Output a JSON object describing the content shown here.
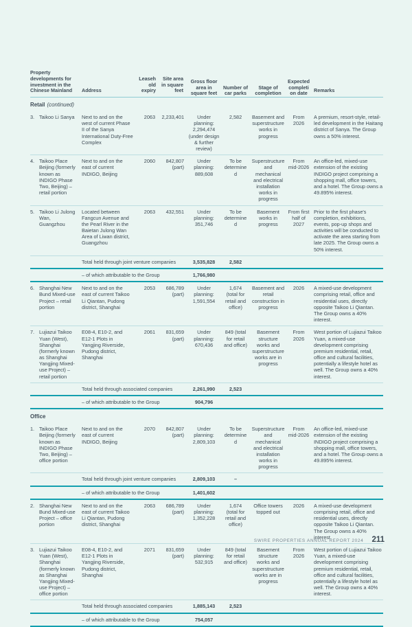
{
  "colors": {
    "page_background": "#eaf5f2",
    "rule_heavy_teal": "#129fae",
    "rule_light_teal": "#bcdee1",
    "header_rule_teal": "#8ecbd3",
    "text": "#3d4a55",
    "footer_text": "#76838f"
  },
  "footer": {
    "report_name": "SWIRE PROPERTIES ANNUAL REPORT 2024",
    "page_number": "211"
  },
  "table": {
    "headers": {
      "property": "Property developments for investment in the Chinese Mainland",
      "address": "Address",
      "leasehold": "Leasehold expiry",
      "site": "Site area in square feet",
      "gfa": "Gross floor area in square feet",
      "carparks": "Number of car parks",
      "stage": "Stage of completion",
      "expected": "Expected completion date",
      "remarks": "Remarks"
    },
    "sections": [
      {
        "title": "Retail",
        "title_suffix": "(continued)",
        "rows": [
          {
            "type": "property",
            "num": "3.",
            "name": "Taikoo Li Sanya",
            "address": "Next to and on the west of current Phase II of the Sanya International Duty-Free Complex",
            "leasehold": "2063",
            "site": "2,233,401",
            "gfa": "Under planning: 2,294,474 (under design & further review)",
            "carparks": "2,582",
            "stage": "Basement and superstructure works in progress",
            "expected": "From 2026",
            "remarks": "A premium, resort-style, retail-led development in the Haitang district of Sanya. The Group owns a 50% interest."
          },
          {
            "type": "property",
            "num": "4.",
            "name": "Taikoo Place Beijing (formerly known as INDIGO Phase Two, Beijing) – retail portion",
            "address": "Next to and on the east of current INDIGO, Beijing",
            "leasehold": "2060",
            "site": "842,807 (part)",
            "gfa": "Under planning: 889,608",
            "carparks": "To be determined",
            "stage": "Superstructure and mechanical and electrical installation works in progress",
            "expected": "From mid-2026",
            "remarks": "An office-led, mixed-use extension of the existing INDIGO project comprising a shopping mall, office towers, and a hotel. The Group owns a 49.895% interest."
          },
          {
            "type": "property",
            "num": "5.",
            "name": "Taikoo Li Julong Wan, Guangzhou",
            "address": "Located between Fangcun Avenue and the Pearl River in the Baietan Julong Wan Area of Liwan district, Guangzhou",
            "leasehold": "2063",
            "site": "432,551",
            "gfa": "Under planning: 351,746",
            "carparks": "To be determined",
            "stage": "Basement works in progress",
            "expected": "From first half of 2027",
            "remarks": "Prior to the first phase's completion, exhibitions, events, pop-up shops and activities will be conducted to activate the area starting from late 2025. The Group owns a 50% interest."
          },
          {
            "type": "total",
            "label": "Total held through joint venture companies",
            "gfa": "3,535,828",
            "carparks": "2,582"
          },
          {
            "type": "subtotal",
            "label": "–  of which attributable to the Group",
            "gfa": "1,766,980",
            "carparks": ""
          },
          {
            "type": "property",
            "num": "6.",
            "name": "Shanghai New Bund Mixed-use Project – retail portion",
            "address": "Next to and on the east of current Taikoo Li Qiantan, Pudong district, Shanghai",
            "leasehold": "2053",
            "site": "686,789 (part)",
            "gfa": "Under planning: 1,591,554",
            "carparks": "1,674 (total for retail and office)",
            "stage": "Basement and retail construction in progress",
            "expected": "2026",
            "remarks": "A mixed-use development comprising retail, office and residential uses, directly opposite Taikoo Li Qiantan. The Group owns a 40% interest."
          },
          {
            "type": "property",
            "num": "7.",
            "name": "Lujiazui Taikoo Yuan (West), Shanghai (formerly known as Shanghai Yangjing Mixed-use Project) – retail portion",
            "address": "E08-4, E10-2, and E12-1 Plots in Yangjing Riverside, Pudong district, Shanghai",
            "leasehold": "2061",
            "site": "831,659 (part)",
            "gfa": "Under planning: 670,436",
            "carparks": "849 (total for retail and office)",
            "stage": "Basement structure works and superstructure works are in progress",
            "expected": "From 2026",
            "remarks": "West portion of Lujiazui Taikoo Yuan, a mixed-use development comprising premium residential, retail, office and cultural facilities, potentially a lifestyle hotel as well. The Group owns a 40% interest."
          },
          {
            "type": "total",
            "label": "Total held through associated companies",
            "gfa": "2,261,990",
            "carparks": "2,523"
          },
          {
            "type": "subtotal",
            "label": "–  of which attributable to the Group",
            "gfa": "904,796",
            "carparks": ""
          }
        ]
      },
      {
        "title": "Office",
        "title_suffix": "",
        "rows": [
          {
            "type": "property",
            "num": "1.",
            "name": "Taikoo Place Beijing (formerly known as INDIGO Phase Two, Beijing) – office portion",
            "address": "Next to and on the east of current INDIGO, Beijing",
            "leasehold": "2070",
            "site": "842,807 (part)",
            "gfa": "Under planning: 2,809,103",
            "carparks": "To be determined",
            "stage": "Superstructure and mechanical and electrical installation works in progress",
            "expected": "From mid-2026",
            "remarks": "An office-led, mixed-use extension of the existing INDIGO project comprising a shopping mall, office towers, and a hotel. The Group owns a 49.895% interest."
          },
          {
            "type": "total",
            "label": "Total held through joint venture companies",
            "gfa": "2,809,103",
            "carparks": "–"
          },
          {
            "type": "subtotal",
            "label": "–  of which attributable to the Group",
            "gfa": "1,401,602",
            "carparks": ""
          },
          {
            "type": "property",
            "num": "2.",
            "name": "Shanghai New Bund Mixed-use Project – office portion",
            "address": "Next to and on the east of current Taikoo Li Qiantan, Pudong district, Shanghai",
            "leasehold": "2063",
            "site": "686,789 (part)",
            "gfa": "Under planning: 1,352,228",
            "carparks": "1,674 (total for retail and office)",
            "stage": "Office towers topped out",
            "expected": "2026",
            "remarks": "A mixed-use development comprising retail, office and residential uses, directly opposite Taikoo Li Qiantan. The Group owns a 40% interest."
          },
          {
            "type": "property",
            "num": "3.",
            "name": "Lujiazui Taikoo Yuan (West), Shanghai (formerly known as Shanghai Yangjing Mixed-use Project) – office portion",
            "address": "E08-4, E10-2, and E12-1 Plots in Yangjing Riverside, Pudong district, Shanghai",
            "leasehold": "2071",
            "site": "831,659 (part)",
            "gfa": "Under planning: 532,915",
            "carparks": "849 (total for retail and office)",
            "stage": "Basement structure works and superstructure works are in progress",
            "expected": "From 2026",
            "remarks": "West portion of Lujiazui Taikoo Yuan, a mixed-use development comprising premium residential, retail, office and cultural facilities, potentially a lifestyle hotel as well. The Group owns a 40% interest."
          },
          {
            "type": "total",
            "label": "Total held through associated companies",
            "gfa": "1,885,143",
            "carparks": "2,523"
          },
          {
            "type": "subtotal",
            "label": "–  of which attributable to the Group",
            "gfa": "754,057",
            "carparks": ""
          }
        ]
      }
    ]
  }
}
